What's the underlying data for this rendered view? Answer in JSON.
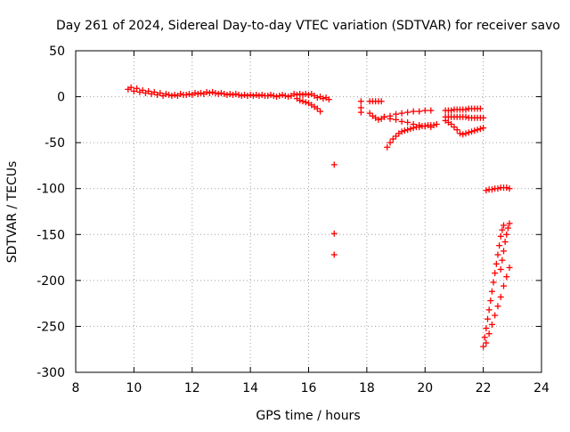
{
  "chart_data": {
    "type": "scatter",
    "title": "Day 261 of 2024, Sidereal Day-to-day VTEC variation (SDTVAR) for receiver savo",
    "xlabel": "GPS time / hours",
    "ylabel": "SDTVAR / TECUs",
    "xlim": [
      8,
      24
    ],
    "ylim": [
      -300,
      50
    ],
    "xticks": [
      8,
      10,
      12,
      14,
      16,
      18,
      20,
      22,
      24
    ],
    "yticks": [
      -300,
      -250,
      -200,
      -150,
      -100,
      -50,
      0,
      50
    ],
    "grid": true,
    "marker": "+",
    "color": "#ff0000",
    "series": [
      {
        "values": [
          [
            9.8,
            8
          ],
          [
            9.9,
            10
          ],
          [
            10.0,
            6
          ],
          [
            10.1,
            9
          ],
          [
            10.2,
            5
          ],
          [
            10.3,
            7
          ],
          [
            10.4,
            4
          ],
          [
            10.5,
            6
          ],
          [
            10.6,
            3
          ],
          [
            10.7,
            5
          ],
          [
            10.8,
            2
          ],
          [
            10.9,
            4
          ],
          [
            11.0,
            1
          ],
          [
            11.1,
            3
          ],
          [
            11.2,
            2
          ],
          [
            11.3,
            1
          ],
          [
            11.4,
            2
          ],
          [
            11.5,
            1
          ],
          [
            11.6,
            3
          ],
          [
            11.7,
            2
          ],
          [
            11.8,
            2
          ],
          [
            11.9,
            3
          ],
          [
            12.0,
            2
          ],
          [
            12.1,
            4
          ],
          [
            12.2,
            3
          ],
          [
            12.3,
            4
          ],
          [
            12.4,
            3
          ],
          [
            12.5,
            5
          ],
          [
            12.6,
            4
          ],
          [
            12.7,
            5
          ],
          [
            12.8,
            4
          ],
          [
            12.9,
            3
          ],
          [
            13.0,
            4
          ],
          [
            13.1,
            3
          ],
          [
            13.2,
            2
          ],
          [
            13.3,
            3
          ],
          [
            13.4,
            2
          ],
          [
            13.5,
            3
          ],
          [
            13.6,
            2
          ],
          [
            13.7,
            1
          ],
          [
            13.8,
            2
          ],
          [
            13.9,
            1
          ],
          [
            14.0,
            2
          ],
          [
            14.1,
            1
          ],
          [
            14.2,
            2
          ],
          [
            14.3,
            1
          ],
          [
            14.4,
            2
          ],
          [
            14.5,
            1
          ],
          [
            14.6,
            1
          ],
          [
            14.7,
            2
          ],
          [
            14.8,
            1
          ],
          [
            14.9,
            0
          ],
          [
            15.0,
            1
          ],
          [
            15.1,
            2
          ],
          [
            15.2,
            1
          ],
          [
            15.3,
            0
          ],
          [
            15.4,
            1
          ],
          [
            15.5,
            3
          ],
          [
            15.6,
            2
          ],
          [
            15.7,
            3
          ],
          [
            15.8,
            2
          ],
          [
            15.9,
            3
          ],
          [
            16.0,
            2
          ],
          [
            16.1,
            3
          ],
          [
            16.2,
            1
          ],
          [
            16.3,
            -1
          ],
          [
            16.4,
            0
          ],
          [
            16.5,
            -2
          ],
          [
            16.6,
            -1
          ],
          [
            16.7,
            -3
          ],
          [
            15.6,
            -2
          ],
          [
            15.7,
            -4
          ],
          [
            15.8,
            -5
          ],
          [
            15.9,
            -6
          ],
          [
            16.0,
            -7
          ],
          [
            16.1,
            -9
          ],
          [
            16.2,
            -11
          ],
          [
            16.3,
            -13
          ],
          [
            16.4,
            -16
          ]
        ]
      },
      {
        "values": [
          [
            16.88,
            -74
          ],
          [
            16.88,
            -149
          ],
          [
            16.88,
            -172
          ],
          [
            17.8,
            -5
          ],
          [
            17.8,
            -12
          ],
          [
            17.8,
            -17
          ]
        ]
      },
      {
        "values": [
          [
            18.1,
            -5
          ],
          [
            18.2,
            -5
          ],
          [
            18.3,
            -5
          ],
          [
            18.4,
            -5
          ],
          [
            18.5,
            -5
          ],
          [
            18.1,
            -18
          ],
          [
            18.2,
            -21
          ],
          [
            18.3,
            -23
          ],
          [
            18.4,
            -25
          ],
          [
            18.5,
            -24
          ],
          [
            18.6,
            -22
          ],
          [
            18.8,
            -21
          ],
          [
            19.0,
            -19
          ],
          [
            19.2,
            -18
          ],
          [
            19.4,
            -17
          ],
          [
            19.6,
            -16
          ],
          [
            19.8,
            -16
          ],
          [
            20.0,
            -15
          ],
          [
            20.2,
            -15
          ],
          [
            18.6,
            -22
          ],
          [
            18.8,
            -24
          ],
          [
            19.0,
            -25
          ],
          [
            19.2,
            -27
          ],
          [
            19.4,
            -28
          ],
          [
            19.6,
            -30
          ],
          [
            19.8,
            -31
          ],
          [
            20.0,
            -32
          ],
          [
            20.2,
            -33
          ],
          [
            18.7,
            -55
          ],
          [
            18.8,
            -50
          ],
          [
            18.9,
            -46
          ],
          [
            19.0,
            -43
          ],
          [
            19.1,
            -40
          ],
          [
            19.2,
            -38
          ],
          [
            19.3,
            -37
          ],
          [
            19.4,
            -36
          ],
          [
            19.5,
            -35
          ],
          [
            19.6,
            -34
          ],
          [
            19.7,
            -33
          ],
          [
            19.8,
            -33
          ],
          [
            19.9,
            -32
          ],
          [
            20.0,
            -32
          ],
          [
            20.1,
            -31
          ],
          [
            20.2,
            -31
          ],
          [
            20.3,
            -31
          ],
          [
            20.4,
            -30
          ]
        ]
      },
      {
        "values": [
          [
            20.7,
            -15
          ],
          [
            20.8,
            -15
          ],
          [
            20.9,
            -15
          ],
          [
            21.0,
            -14
          ],
          [
            21.1,
            -14
          ],
          [
            21.2,
            -14
          ],
          [
            21.3,
            -14
          ],
          [
            21.4,
            -14
          ],
          [
            21.5,
            -13
          ],
          [
            21.6,
            -13
          ],
          [
            21.7,
            -13
          ],
          [
            21.8,
            -13
          ],
          [
            21.9,
            -13
          ],
          [
            20.7,
            -22
          ],
          [
            20.8,
            -22
          ],
          [
            20.9,
            -22
          ],
          [
            21.0,
            -22
          ],
          [
            21.1,
            -22
          ],
          [
            21.2,
            -22
          ],
          [
            21.3,
            -22
          ],
          [
            21.4,
            -22
          ],
          [
            21.5,
            -23
          ],
          [
            21.6,
            -23
          ],
          [
            21.7,
            -23
          ],
          [
            21.8,
            -23
          ],
          [
            21.9,
            -23
          ],
          [
            22.0,
            -23
          ],
          [
            20.7,
            -26
          ],
          [
            20.8,
            -28
          ],
          [
            20.9,
            -30
          ],
          [
            21.0,
            -33
          ],
          [
            21.1,
            -36
          ],
          [
            21.2,
            -40
          ],
          [
            21.3,
            -41
          ],
          [
            21.4,
            -40
          ],
          [
            21.5,
            -39
          ],
          [
            21.6,
            -38
          ],
          [
            21.7,
            -37
          ],
          [
            21.8,
            -36
          ],
          [
            21.9,
            -35
          ],
          [
            22.0,
            -34
          ]
        ]
      },
      {
        "values": [
          [
            22.1,
            -102
          ],
          [
            22.2,
            -101
          ],
          [
            22.3,
            -101
          ],
          [
            22.4,
            -100
          ],
          [
            22.5,
            -100
          ],
          [
            22.6,
            -99
          ],
          [
            22.7,
            -99
          ],
          [
            22.8,
            -99
          ],
          [
            22.9,
            -100
          ],
          [
            22.0,
            -272
          ],
          [
            22.05,
            -262
          ],
          [
            22.1,
            -252
          ],
          [
            22.15,
            -242
          ],
          [
            22.2,
            -232
          ],
          [
            22.25,
            -222
          ],
          [
            22.3,
            -212
          ],
          [
            22.35,
            -202
          ],
          [
            22.4,
            -192
          ],
          [
            22.45,
            -182
          ],
          [
            22.5,
            -172
          ],
          [
            22.55,
            -162
          ],
          [
            22.6,
            -152
          ],
          [
            22.65,
            -145
          ],
          [
            22.7,
            -140
          ],
          [
            22.6,
            -188
          ],
          [
            22.65,
            -178
          ],
          [
            22.7,
            -168
          ],
          [
            22.75,
            -158
          ],
          [
            22.8,
            -150
          ],
          [
            22.85,
            -143
          ],
          [
            22.9,
            -138
          ],
          [
            22.1,
            -268
          ],
          [
            22.2,
            -258
          ],
          [
            22.3,
            -248
          ],
          [
            22.4,
            -238
          ],
          [
            22.5,
            -228
          ],
          [
            22.6,
            -218
          ],
          [
            22.7,
            -206
          ],
          [
            22.8,
            -196
          ],
          [
            22.9,
            -186
          ]
        ]
      }
    ]
  }
}
